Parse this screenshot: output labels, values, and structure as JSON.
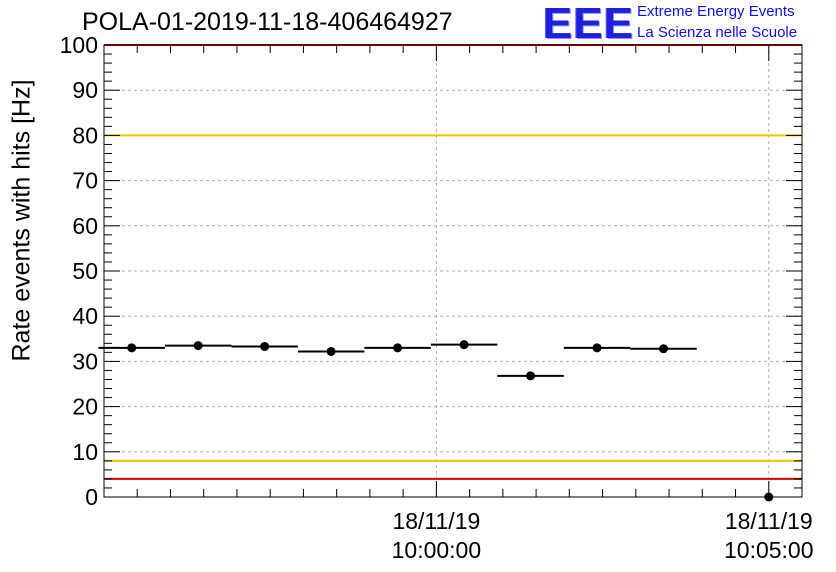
{
  "header": {
    "title": "POLA-01-2019-11-18-406464927",
    "logo_text": "EEE",
    "tagline_1": "Extreme Energy Events",
    "tagline_2": "La Scienza nelle Scuole"
  },
  "colors": {
    "logo": "#1f1fe0",
    "upper_limit_line": "#e00000",
    "yellow_threshold": "#e8c800",
    "points": "#000000"
  },
  "chart_data": {
    "type": "scatter",
    "title": "POLA-01-2019-11-18-406464927",
    "ylabel": "Rate events with hits [Hz]",
    "xlabel": "",
    "ylim": [
      0,
      100
    ],
    "yticks": [
      0,
      10,
      20,
      30,
      40,
      50,
      60,
      70,
      80,
      90,
      100
    ],
    "xticks": [
      {
        "time": "2019-11-18 10:00:00",
        "label_date": "18/11/19",
        "label_time": "10:00:00"
      },
      {
        "time": "2019-11-18 10:05:00",
        "label_date": "18/11/19",
        "label_time": "10:05:00"
      }
    ],
    "xlim": [
      "2019-11-18 09:55:00",
      "2019-11-18 10:05:30"
    ],
    "grid": true,
    "series": [
      {
        "points": [
          {
            "x": "2019-11-18 09:55:25",
            "y": 33.0,
            "x_half_width_s": 30
          },
          {
            "x": "2019-11-18 09:56:25",
            "y": 33.5,
            "x_half_width_s": 30
          },
          {
            "x": "2019-11-18 09:57:25",
            "y": 33.3,
            "x_half_width_s": 30
          },
          {
            "x": "2019-11-18 09:58:25",
            "y": 32.2,
            "x_half_width_s": 30
          },
          {
            "x": "2019-11-18 09:59:25",
            "y": 33.0,
            "x_half_width_s": 30
          },
          {
            "x": "2019-11-18 10:00:25",
            "y": 33.7,
            "x_half_width_s": 30
          },
          {
            "x": "2019-11-18 10:01:25",
            "y": 26.8,
            "x_half_width_s": 30
          },
          {
            "x": "2019-11-18 10:02:25",
            "y": 33.0,
            "x_half_width_s": 30
          },
          {
            "x": "2019-11-18 10:03:25",
            "y": 32.8,
            "x_half_width_s": 30
          },
          {
            "x": "2019-11-18 10:05:00",
            "y": 0.0,
            "x_half_width_s": 0
          }
        ]
      }
    ],
    "reference_lines": [
      {
        "y": 100,
        "color": "#e00000"
      },
      {
        "y": 80,
        "color": "#e8c800"
      },
      {
        "y": 8,
        "color": "#e8c800"
      },
      {
        "y": 4,
        "color": "#e00000"
      }
    ]
  }
}
